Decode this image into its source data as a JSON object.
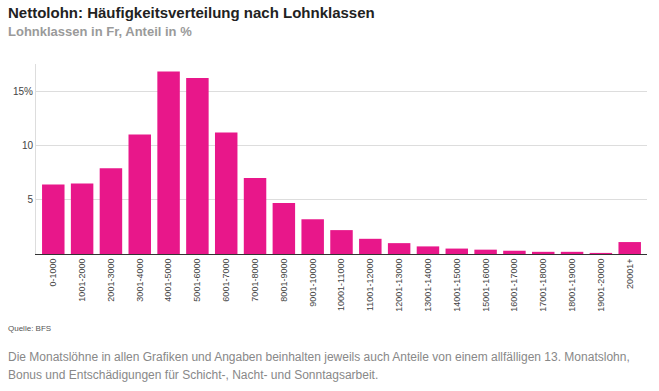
{
  "chart_data": {
    "type": "bar",
    "title": "Nettolohn: Häufigkeitsverteilung nach Lohnklassen",
    "subtitle": "Lohnklassen in Fr, Anteil in %",
    "categories": [
      "0-1000",
      "1001-2000",
      "2001-3000",
      "3001-4000",
      "4001-5000",
      "5001-6000",
      "6001-7000",
      "7001-8000",
      "8001-9000",
      "9001-10000",
      "10001-11000",
      "11001-12000",
      "12001-13000",
      "13001-14000",
      "14001-15000",
      "15001-16000",
      "16001-17000",
      "17001-18000",
      "18001-19000",
      "19001-20000",
      "20001+"
    ],
    "values": [
      6.4,
      6.5,
      7.9,
      11.0,
      16.8,
      16.2,
      11.2,
      7.0,
      4.7,
      3.2,
      2.2,
      1.4,
      1.0,
      0.7,
      0.5,
      0.4,
      0.3,
      0.2,
      0.2,
      0.1,
      1.1
    ],
    "color": "#e8178a",
    "ylim": [
      0,
      17.5
    ],
    "yticks": [
      5,
      10,
      {
        "value": 15,
        "label": "15%"
      }
    ],
    "grid": true,
    "source": "Quelle: BFS",
    "note": "Die Monatslöhne in allen Grafiken und Angaben beinhalten jeweils auch Anteile von einem allfälligen 13. Monatslohn, Bonus und Entschädigungen für Schicht-, Nacht- und Sonntagsarbeit."
  }
}
